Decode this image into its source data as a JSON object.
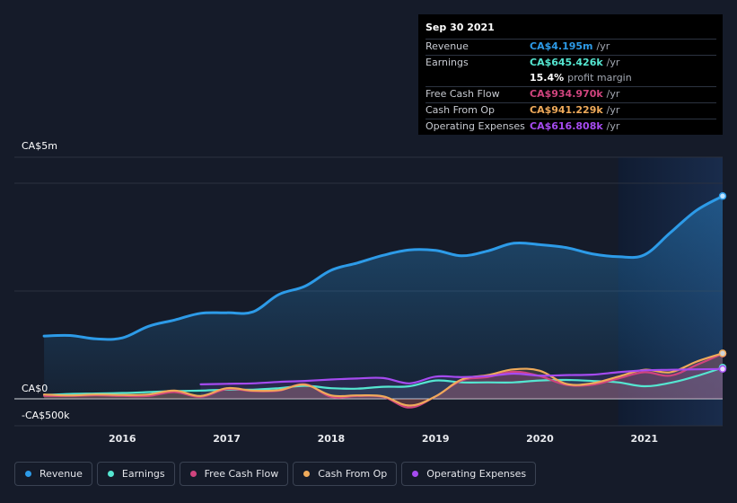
{
  "tooltip": {
    "date": "Sep 30 2021",
    "rows": [
      {
        "label": "Revenue",
        "value": "CA$4.195m",
        "unit": "/yr",
        "color": "#2d9be8"
      },
      {
        "label": "Earnings",
        "value": "CA$645.426k",
        "unit": "/yr",
        "color": "#55e6d1"
      },
      {
        "label": "",
        "value": "15.4%",
        "unit": "profit margin",
        "color": "#ffffff"
      },
      {
        "label": "Free Cash Flow",
        "value": "CA$934.970k",
        "unit": "/yr",
        "color": "#d0447e"
      },
      {
        "label": "Cash From Op",
        "value": "CA$941.229k",
        "unit": "/yr",
        "color": "#efaa5a"
      },
      {
        "label": "Operating Expenses",
        "value": "CA$616.808k",
        "unit": "/yr",
        "color": "#a54bf0"
      }
    ]
  },
  "legend": [
    {
      "label": "Revenue",
      "color": "#2d9be8"
    },
    {
      "label": "Earnings",
      "color": "#55e6d1"
    },
    {
      "label": "Free Cash Flow",
      "color": "#d0447e"
    },
    {
      "label": "Cash From Op",
      "color": "#efaa5a"
    },
    {
      "label": "Operating Expenses",
      "color": "#a54bf0"
    }
  ],
  "chart_data": {
    "type": "area",
    "y_tick_labels": [
      "CA$5m",
      "CA$0",
      "-CA$500k"
    ],
    "x_tick_labels": [
      "2016",
      "2017",
      "2018",
      "2019",
      "2020",
      "2021"
    ],
    "ylim": [
      -600000,
      5000000
    ],
    "highlight_start": 2020.75,
    "series": [
      {
        "name": "Revenue",
        "color": "#2d9be8",
        "points": [
          [
            2015.25,
            1.3
          ],
          [
            2015.5,
            1.31
          ],
          [
            2015.75,
            1.24
          ],
          [
            2016.0,
            1.26
          ],
          [
            2016.25,
            1.5
          ],
          [
            2016.5,
            1.63
          ],
          [
            2016.75,
            1.77
          ],
          [
            2017.0,
            1.78
          ],
          [
            2017.25,
            1.8
          ],
          [
            2017.5,
            2.16
          ],
          [
            2017.75,
            2.33
          ],
          [
            2018.0,
            2.66
          ],
          [
            2018.25,
            2.81
          ],
          [
            2018.5,
            2.97
          ],
          [
            2018.75,
            3.08
          ],
          [
            2019.0,
            3.07
          ],
          [
            2019.25,
            2.96
          ],
          [
            2019.5,
            3.06
          ],
          [
            2019.75,
            3.22
          ],
          [
            2020.0,
            3.19
          ],
          [
            2020.25,
            3.13
          ],
          [
            2020.5,
            3.0
          ],
          [
            2020.75,
            2.94
          ],
          [
            2021.0,
            2.98
          ],
          [
            2021.25,
            3.44
          ],
          [
            2021.5,
            3.9
          ],
          [
            2021.75,
            4.195
          ]
        ]
      },
      {
        "name": "Earnings",
        "color": "#55e6d1",
        "points": [
          [
            2015.25,
            0.08
          ],
          [
            2015.5,
            0.1
          ],
          [
            2015.75,
            0.11
          ],
          [
            2016.0,
            0.12
          ],
          [
            2016.25,
            0.14
          ],
          [
            2016.5,
            0.16
          ],
          [
            2016.75,
            0.17
          ],
          [
            2017.0,
            0.19
          ],
          [
            2017.25,
            0.19
          ],
          [
            2017.5,
            0.22
          ],
          [
            2017.75,
            0.27
          ],
          [
            2018.0,
            0.22
          ],
          [
            2018.25,
            0.21
          ],
          [
            2018.5,
            0.25
          ],
          [
            2018.75,
            0.26
          ],
          [
            2019.0,
            0.38
          ],
          [
            2019.25,
            0.34
          ],
          [
            2019.5,
            0.34
          ],
          [
            2019.75,
            0.34
          ],
          [
            2020.0,
            0.38
          ],
          [
            2020.25,
            0.39
          ],
          [
            2020.5,
            0.37
          ],
          [
            2020.75,
            0.34
          ],
          [
            2021.0,
            0.26
          ],
          [
            2021.25,
            0.33
          ],
          [
            2021.5,
            0.47
          ],
          [
            2021.75,
            0.645
          ]
        ]
      },
      {
        "name": "Free Cash Flow",
        "color": "#d0447e",
        "points": [
          [
            2015.25,
            0.06
          ],
          [
            2015.5,
            0.06
          ],
          [
            2015.75,
            0.07
          ],
          [
            2016.0,
            0.06
          ],
          [
            2016.25,
            0.06
          ],
          [
            2016.5,
            0.14
          ],
          [
            2016.75,
            0.04
          ],
          [
            2017.0,
            0.2
          ],
          [
            2017.25,
            0.16
          ],
          [
            2017.5,
            0.17
          ],
          [
            2017.75,
            0.3
          ],
          [
            2018.0,
            0.04
          ],
          [
            2018.25,
            0.06
          ],
          [
            2018.5,
            0.04
          ],
          [
            2018.75,
            -0.18
          ],
          [
            2019.0,
            0.05
          ],
          [
            2019.25,
            0.38
          ],
          [
            2019.5,
            0.45
          ],
          [
            2019.75,
            0.56
          ],
          [
            2020.0,
            0.47
          ],
          [
            2020.25,
            0.29
          ],
          [
            2020.5,
            0.29
          ],
          [
            2020.75,
            0.42
          ],
          [
            2021.0,
            0.55
          ],
          [
            2021.25,
            0.48
          ],
          [
            2021.5,
            0.7
          ],
          [
            2021.75,
            0.935
          ]
        ]
      },
      {
        "name": "Cash From Op",
        "color": "#efaa5a",
        "points": [
          [
            2015.25,
            0.09
          ],
          [
            2015.5,
            0.07
          ],
          [
            2015.75,
            0.09
          ],
          [
            2016.0,
            0.08
          ],
          [
            2016.25,
            0.09
          ],
          [
            2016.5,
            0.17
          ],
          [
            2016.75,
            0.06
          ],
          [
            2017.0,
            0.22
          ],
          [
            2017.25,
            0.17
          ],
          [
            2017.5,
            0.18
          ],
          [
            2017.75,
            0.29
          ],
          [
            2018.0,
            0.07
          ],
          [
            2018.25,
            0.07
          ],
          [
            2018.5,
            0.05
          ],
          [
            2018.75,
            -0.14
          ],
          [
            2019.0,
            0.05
          ],
          [
            2019.25,
            0.4
          ],
          [
            2019.5,
            0.49
          ],
          [
            2019.75,
            0.61
          ],
          [
            2020.0,
            0.58
          ],
          [
            2020.25,
            0.31
          ],
          [
            2020.5,
            0.32
          ],
          [
            2020.75,
            0.46
          ],
          [
            2021.0,
            0.6
          ],
          [
            2021.25,
            0.55
          ],
          [
            2021.5,
            0.77
          ],
          [
            2021.75,
            0.941
          ]
        ]
      },
      {
        "name": "Operating Expenses",
        "color": "#a54bf0",
        "points": [
          [
            2016.75,
            0.3
          ],
          [
            2017.0,
            0.31
          ],
          [
            2017.25,
            0.32
          ],
          [
            2017.5,
            0.35
          ],
          [
            2017.75,
            0.37
          ],
          [
            2018.0,
            0.4
          ],
          [
            2018.25,
            0.42
          ],
          [
            2018.5,
            0.43
          ],
          [
            2018.75,
            0.32
          ],
          [
            2019.0,
            0.46
          ],
          [
            2019.25,
            0.45
          ],
          [
            2019.5,
            0.47
          ],
          [
            2019.75,
            0.52
          ],
          [
            2020.0,
            0.48
          ],
          [
            2020.25,
            0.49
          ],
          [
            2020.5,
            0.5
          ],
          [
            2020.75,
            0.55
          ],
          [
            2021.0,
            0.59
          ],
          [
            2021.25,
            0.6
          ],
          [
            2021.5,
            0.61
          ],
          [
            2021.75,
            0.617
          ]
        ]
      }
    ]
  }
}
